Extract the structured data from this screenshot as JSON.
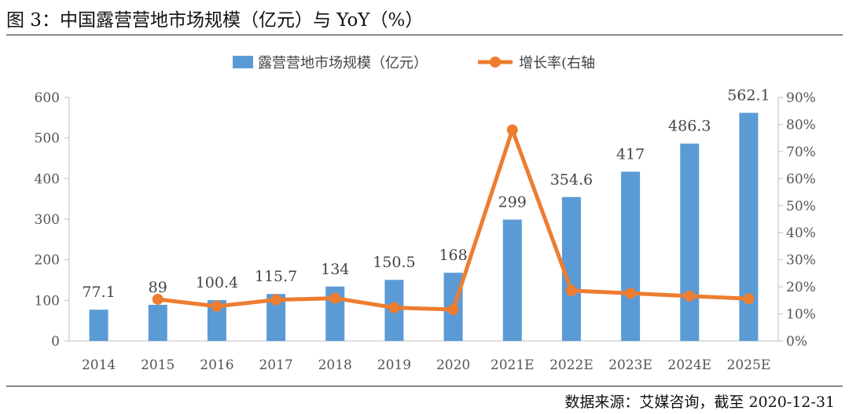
{
  "header": {
    "title": "图 3：中国露营营地市场规模（亿元）与 YoY（%）"
  },
  "footer": {
    "source": "数据来源：艾媒咨询，截至 2020-12-31"
  },
  "colors": {
    "bar": "#5b9bd5",
    "line": "#ed7d31",
    "axis": "#bfbfbf"
  },
  "chart_data": {
    "type": "bar+line",
    "categories": [
      "2014",
      "2015",
      "2016",
      "2017",
      "2018",
      "2019",
      "2020",
      "2021E",
      "2022E",
      "2023E",
      "2024E",
      "2025E"
    ],
    "series": [
      {
        "name": "露营营地市场规模（亿元）",
        "type": "bar",
        "axis": "left",
        "values": [
          77.1,
          89,
          100.4,
          115.7,
          134,
          150.5,
          168,
          299,
          354.6,
          417,
          486.3,
          562.1
        ],
        "labels": [
          "77.1",
          "89",
          "100.4",
          "115.7",
          "134",
          "150.5",
          "168",
          "299",
          "354.6",
          "417",
          "486.3",
          "562.1"
        ]
      },
      {
        "name": "增长率(右轴",
        "type": "line",
        "axis": "right",
        "values": [
          null,
          15.4,
          12.8,
          15.2,
          15.8,
          12.3,
          11.6,
          78.0,
          18.6,
          17.6,
          16.6,
          15.6
        ]
      }
    ],
    "y_left": {
      "min": 0,
      "max": 600,
      "ticks": [
        "0",
        "100",
        "200",
        "300",
        "400",
        "500",
        "600"
      ]
    },
    "y_right": {
      "min": 0,
      "max": 90,
      "ticks": [
        "0%",
        "10%",
        "20%",
        "30%",
        "40%",
        "50%",
        "60%",
        "70%",
        "80%",
        "90%"
      ]
    },
    "legend_position": "top-center",
    "grid": false
  }
}
